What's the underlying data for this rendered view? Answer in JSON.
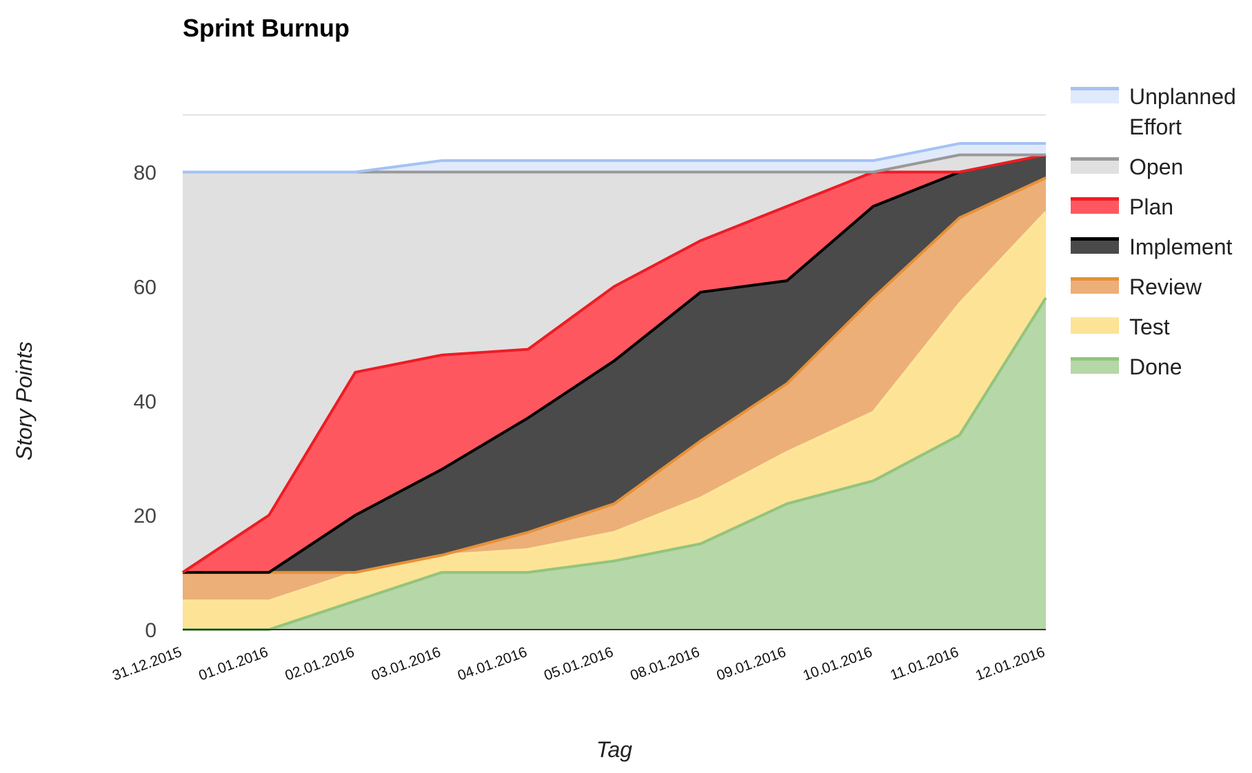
{
  "chart_data": {
    "type": "area",
    "stacked": true,
    "title": "Sprint Burnup",
    "xlabel": "Tag",
    "ylabel": "Story Points",
    "ylim": [
      0,
      92
    ],
    "yticks": [
      0,
      20,
      40,
      60,
      80
    ],
    "grid": true,
    "legend_position": "right",
    "categories": [
      "31.12.2015",
      "01.01.2016",
      "02.01.2016",
      "03.01.2016",
      "04.01.2016",
      "05.01.2016",
      "08.01.2016",
      "09.01.2016",
      "10.01.2016",
      "11.01.2016",
      "12.01.2016"
    ],
    "series": [
      {
        "name": "Done",
        "values": [
          0,
          0,
          5,
          10,
          10,
          12,
          15,
          22,
          26,
          34,
          58
        ],
        "line_color": "#93c47d",
        "fill_color": "#b6d7a8"
      },
      {
        "name": "Test",
        "values": [
          5,
          5,
          5,
          3,
          4,
          5,
          8,
          9,
          12,
          23,
          15
        ],
        "line_color": "#ffe599",
        "fill_color": "#fde396"
      },
      {
        "name": "Review",
        "values": [
          5,
          5,
          0,
          0,
          3,
          5,
          10,
          12,
          20,
          15,
          6
        ],
        "line_color": "#e69138",
        "fill_color": "#ecaf78"
      },
      {
        "name": "Implement",
        "values": [
          0,
          0,
          10,
          15,
          20,
          25,
          26,
          18,
          16,
          8,
          4
        ],
        "line_color": "#000000",
        "fill_color": "#4a4a4a"
      },
      {
        "name": "Plan",
        "values": [
          0,
          10,
          25,
          20,
          12,
          13,
          9,
          13,
          6,
          0,
          0
        ],
        "line_color": "#ee1c24",
        "fill_color": "#fe5760"
      },
      {
        "name": "Open",
        "values": [
          70,
          60,
          35,
          32,
          31,
          20,
          12,
          6,
          0,
          3,
          0
        ],
        "line_color": "#999999",
        "fill_color": "#e0e0e0"
      },
      {
        "name": "Unplanned Effort",
        "values": [
          0,
          0,
          0,
          2,
          2,
          2,
          2,
          2,
          2,
          2,
          2
        ],
        "line_color": "#a4c2f4",
        "fill_color": "#e0eafb"
      }
    ]
  },
  "colors": {
    "axis": "#333333",
    "grid": "#bdbdbd",
    "grid_minor": "#d9d9d9",
    "tick_text": "#444444"
  }
}
